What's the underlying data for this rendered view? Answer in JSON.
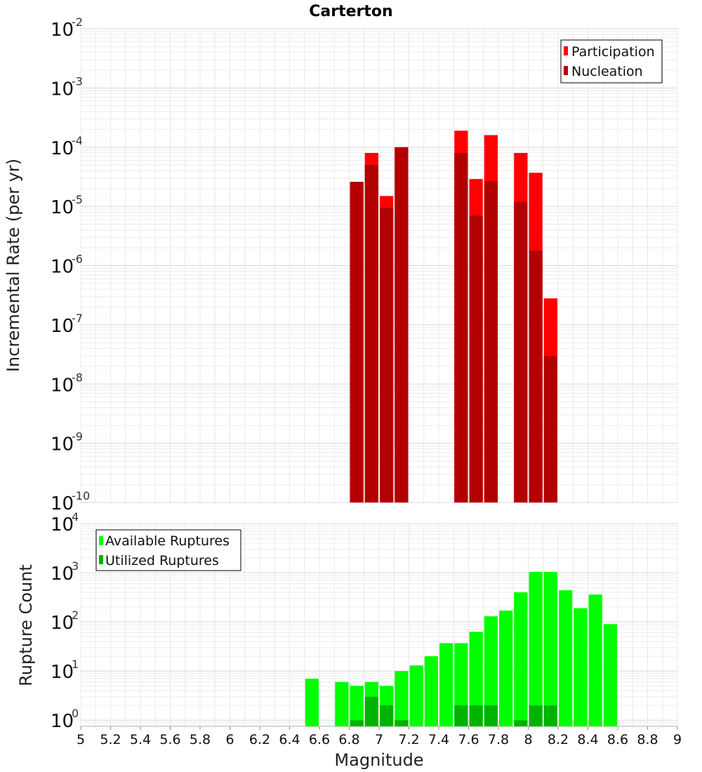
{
  "chart_data": [
    {
      "type": "bar",
      "title": "Carterton",
      "xlabel": "",
      "ylabel": "Incremental Rate (per yr)",
      "yscale": "log",
      "ylim": [
        1e-10,
        0.01
      ],
      "xlim": [
        5,
        9
      ],
      "bar_width": 0.1,
      "grid": true,
      "legend_position": "top-right",
      "series": [
        {
          "name": "Participation",
          "color": "#ff0000",
          "x": [
            6.85,
            6.95,
            7.05,
            7.15,
            7.55,
            7.65,
            7.75,
            7.95,
            8.05,
            8.15
          ],
          "values": [
            2.6e-05,
            8e-05,
            1.5e-05,
            0.0001,
            0.00019,
            2.9e-05,
            0.00016,
            8e-05,
            3.7e-05,
            2.8e-07
          ]
        },
        {
          "name": "Nucleation",
          "color": "#b20000",
          "x": [
            6.85,
            6.95,
            7.05,
            7.15,
            7.55,
            7.65,
            7.75,
            7.95,
            8.05,
            8.15
          ],
          "values": [
            2.6e-05,
            5e-05,
            9.5e-06,
            0.0001,
            8e-05,
            7e-06,
            2.7e-05,
            1.2e-05,
            1.8e-06,
            3e-08
          ]
        }
      ]
    },
    {
      "type": "bar",
      "title": "",
      "xlabel": "Magnitude",
      "ylabel": "Rupture Count",
      "yscale": "log",
      "ylim": [
        0.75,
        10000.0
      ],
      "xlim": [
        5,
        9
      ],
      "bar_width": 0.1,
      "grid": true,
      "legend_position": "top-left",
      "x_ticks": [
        "5",
        "5.2",
        "5.4",
        "5.6",
        "5.8",
        "6",
        "6.2",
        "6.4",
        "6.6",
        "6.8",
        "7",
        "7.2",
        "7.4",
        "7.6",
        "7.8",
        "8",
        "8.2",
        "8.4",
        "8.6",
        "8.8",
        "9"
      ],
      "series": [
        {
          "name": "Available Ruptures",
          "color": "#00ff00",
          "x": [
            6.55,
            6.75,
            6.85,
            6.95,
            7.05,
            7.15,
            7.25,
            7.35,
            7.45,
            7.55,
            7.65,
            7.75,
            7.85,
            7.95,
            8.05,
            8.15,
            8.25,
            8.35,
            8.45,
            8.55
          ],
          "values": [
            7,
            6,
            5,
            6,
            5,
            10,
            13,
            20,
            37,
            37,
            63,
            130,
            170,
            400,
            1040,
            1040,
            440,
            190,
            360,
            90
          ]
        },
        {
          "name": "Utilized Ruptures",
          "color": "#00b200",
          "x": [
            6.85,
            6.95,
            7.05,
            7.15,
            7.55,
            7.65,
            7.75,
            7.95,
            8.05,
            8.15
          ],
          "values": [
            1,
            3,
            2,
            1,
            2,
            2,
            2,
            1,
            2,
            2
          ]
        }
      ]
    }
  ]
}
